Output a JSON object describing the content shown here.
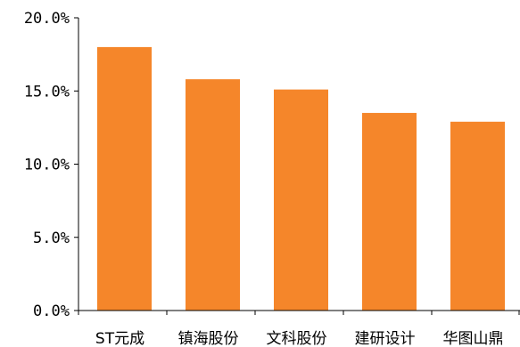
{
  "chart_data": {
    "type": "bar",
    "categories": [
      "ST元成",
      "镇海股份",
      "文科股份",
      "建研设计",
      "华图山鼎"
    ],
    "values": [
      18.0,
      15.8,
      15.1,
      13.5,
      12.9
    ],
    "yticks": [
      "0.0%",
      "5.0%",
      "10.0%",
      "15.0%",
      "20.0%"
    ],
    "ylim": [
      0,
      20
    ],
    "bar_color": "#f5862a",
    "axis_color": "#000000",
    "grid": false,
    "legend": "none"
  }
}
